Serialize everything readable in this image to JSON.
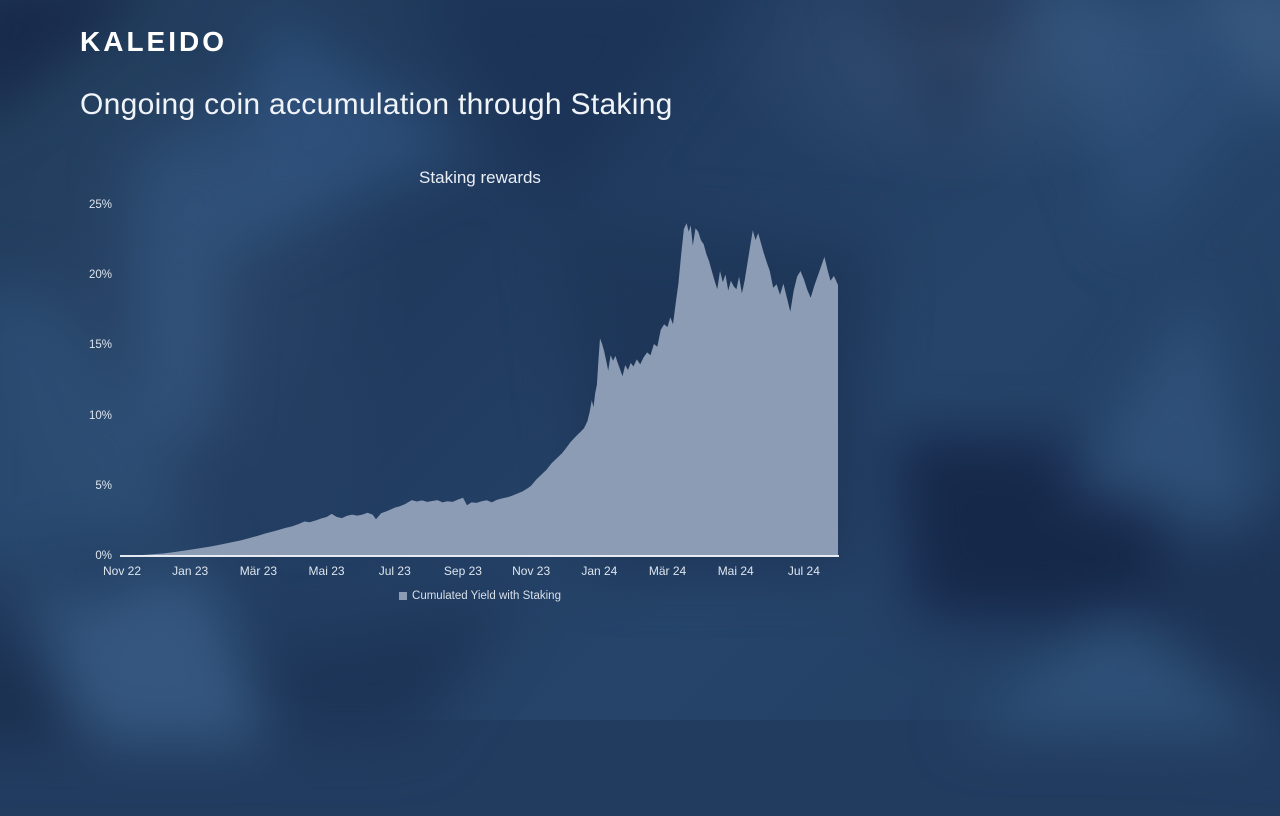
{
  "slide": {
    "logo": "KALEIDO",
    "title": "Ongoing coin accumulation through Staking"
  },
  "chart": {
    "title": "Staking rewards",
    "legend_label": "Cumulated Yield with Staking",
    "colors": {
      "area": "#8c9cb4",
      "axis": "#edf2f8",
      "text": "#dde5ee",
      "background": "#223c60"
    }
  },
  "chart_data": {
    "type": "area",
    "title": "Staking rewards",
    "xlabel": "",
    "ylabel": "",
    "x_unit": "months since Nov 2022",
    "x_ticks": [
      "Nov 22",
      "Jan 23",
      "Mär 23",
      "Mai 23",
      "Jul 23",
      "Sep 23",
      "Nov 23",
      "Jan 24",
      "Mär 24",
      "Mai 24",
      "Jul 24"
    ],
    "x_tick_positions_months": [
      0,
      2,
      4,
      6,
      8,
      10,
      12,
      14,
      16,
      18,
      20
    ],
    "y_ticks": [
      "0%",
      "5%",
      "10%",
      "15%",
      "20%",
      "25%"
    ],
    "y_tick_values": [
      0,
      5,
      10,
      15,
      20,
      25
    ],
    "ylim": [
      0,
      25
    ],
    "xlim_months": [
      0,
      21
    ],
    "grid": false,
    "legend_position": "bottom",
    "series": [
      {
        "name": "Cumulated Yield with Staking",
        "color": "#8c9cb4",
        "points_month_pct": [
          [
            0,
            0
          ],
          [
            0.3,
            0.03
          ],
          [
            0.6,
            0.07
          ],
          [
            0.9,
            0.12
          ],
          [
            1.2,
            0.18
          ],
          [
            1.5,
            0.27
          ],
          [
            1.8,
            0.37
          ],
          [
            2,
            0.45
          ],
          [
            2.3,
            0.56
          ],
          [
            2.6,
            0.68
          ],
          [
            2.9,
            0.82
          ],
          [
            3.2,
            0.97
          ],
          [
            3.5,
            1.12
          ],
          [
            3.8,
            1.32
          ],
          [
            4,
            1.45
          ],
          [
            4.2,
            1.6
          ],
          [
            4.4,
            1.73
          ],
          [
            4.6,
            1.86
          ],
          [
            4.8,
            2.0
          ],
          [
            5,
            2.12
          ],
          [
            5.2,
            2.3
          ],
          [
            5.35,
            2.46
          ],
          [
            5.5,
            2.4
          ],
          [
            5.7,
            2.55
          ],
          [
            5.85,
            2.68
          ],
          [
            6,
            2.78
          ],
          [
            6.15,
            3.0
          ],
          [
            6.3,
            2.78
          ],
          [
            6.45,
            2.7
          ],
          [
            6.6,
            2.86
          ],
          [
            6.75,
            2.95
          ],
          [
            6.9,
            2.88
          ],
          [
            7.05,
            2.95
          ],
          [
            7.2,
            3.08
          ],
          [
            7.35,
            2.95
          ],
          [
            7.45,
            2.62
          ],
          [
            7.6,
            3.05
          ],
          [
            7.8,
            3.22
          ],
          [
            8,
            3.45
          ],
          [
            8.15,
            3.55
          ],
          [
            8.3,
            3.7
          ],
          [
            8.5,
            3.98
          ],
          [
            8.65,
            3.88
          ],
          [
            8.8,
            3.96
          ],
          [
            8.95,
            3.85
          ],
          [
            9.1,
            3.92
          ],
          [
            9.25,
            3.98
          ],
          [
            9.4,
            3.82
          ],
          [
            9.55,
            3.9
          ],
          [
            9.7,
            3.85
          ],
          [
            9.85,
            4.02
          ],
          [
            10,
            4.15
          ],
          [
            10.12,
            3.62
          ],
          [
            10.25,
            3.82
          ],
          [
            10.4,
            3.78
          ],
          [
            10.55,
            3.9
          ],
          [
            10.7,
            3.97
          ],
          [
            10.85,
            3.82
          ],
          [
            11,
            4.0
          ],
          [
            11.15,
            4.1
          ],
          [
            11.3,
            4.18
          ],
          [
            11.45,
            4.3
          ],
          [
            11.6,
            4.45
          ],
          [
            11.75,
            4.6
          ],
          [
            11.9,
            4.82
          ],
          [
            12,
            5.0
          ],
          [
            12.15,
            5.45
          ],
          [
            12.3,
            5.8
          ],
          [
            12.45,
            6.15
          ],
          [
            12.6,
            6.6
          ],
          [
            12.75,
            6.95
          ],
          [
            12.9,
            7.3
          ],
          [
            13,
            7.6
          ],
          [
            13.15,
            8.1
          ],
          [
            13.3,
            8.5
          ],
          [
            13.45,
            8.85
          ],
          [
            13.55,
            9.1
          ],
          [
            13.65,
            9.6
          ],
          [
            13.72,
            10.3
          ],
          [
            13.78,
            11.1
          ],
          [
            13.83,
            10.6
          ],
          [
            13.88,
            11.6
          ],
          [
            13.93,
            12.2
          ],
          [
            13.97,
            13.8
          ],
          [
            14.02,
            15.5
          ],
          [
            14.08,
            15.1
          ],
          [
            14.14,
            14.6
          ],
          [
            14.2,
            13.9
          ],
          [
            14.26,
            13.2
          ],
          [
            14.33,
            14.3
          ],
          [
            14.4,
            13.9
          ],
          [
            14.47,
            14.25
          ],
          [
            14.54,
            13.75
          ],
          [
            14.6,
            13.35
          ],
          [
            14.68,
            12.8
          ],
          [
            14.76,
            13.6
          ],
          [
            14.84,
            13.25
          ],
          [
            14.92,
            13.75
          ],
          [
            15,
            13.5
          ],
          [
            15.1,
            14.0
          ],
          [
            15.2,
            13.65
          ],
          [
            15.3,
            14.15
          ],
          [
            15.4,
            14.5
          ],
          [
            15.5,
            14.3
          ],
          [
            15.6,
            15.1
          ],
          [
            15.7,
            14.9
          ],
          [
            15.8,
            16.1
          ],
          [
            15.9,
            16.5
          ],
          [
            16,
            16.3
          ],
          [
            16.08,
            17.0
          ],
          [
            16.16,
            16.5
          ],
          [
            16.24,
            18.0
          ],
          [
            16.32,
            19.4
          ],
          [
            16.4,
            21.5
          ],
          [
            16.48,
            23.3
          ],
          [
            16.56,
            23.7
          ],
          [
            16.62,
            23.1
          ],
          [
            16.68,
            23.55
          ],
          [
            16.74,
            22.1
          ],
          [
            16.82,
            23.35
          ],
          [
            16.9,
            23.1
          ],
          [
            16.98,
            22.5
          ],
          [
            17.06,
            22.2
          ],
          [
            17.14,
            21.5
          ],
          [
            17.22,
            21.0
          ],
          [
            17.3,
            20.3
          ],
          [
            17.38,
            19.6
          ],
          [
            17.46,
            19.0
          ],
          [
            17.54,
            20.3
          ],
          [
            17.62,
            19.5
          ],
          [
            17.7,
            20.05
          ],
          [
            17.78,
            18.9
          ],
          [
            17.86,
            19.6
          ],
          [
            17.94,
            19.2
          ],
          [
            18.02,
            19.0
          ],
          [
            18.1,
            19.9
          ],
          [
            18.18,
            18.7
          ],
          [
            18.26,
            19.6
          ],
          [
            18.34,
            20.8
          ],
          [
            18.42,
            22.0
          ],
          [
            18.5,
            23.2
          ],
          [
            18.58,
            22.5
          ],
          [
            18.66,
            23.0
          ],
          [
            18.74,
            22.3
          ],
          [
            18.82,
            21.6
          ],
          [
            18.9,
            21.0
          ],
          [
            19,
            20.3
          ],
          [
            19.1,
            19.1
          ],
          [
            19.2,
            19.35
          ],
          [
            19.3,
            18.6
          ],
          [
            19.4,
            19.4
          ],
          [
            19.5,
            18.4
          ],
          [
            19.6,
            17.4
          ],
          [
            19.7,
            18.9
          ],
          [
            19.8,
            19.9
          ],
          [
            19.9,
            20.3
          ],
          [
            20,
            19.7
          ],
          [
            20.1,
            18.95
          ],
          [
            20.2,
            18.4
          ],
          [
            20.3,
            19.2
          ],
          [
            20.4,
            19.9
          ],
          [
            20.5,
            20.6
          ],
          [
            20.6,
            21.3
          ],
          [
            20.7,
            20.3
          ],
          [
            20.78,
            19.6
          ],
          [
            20.88,
            19.95
          ],
          [
            21,
            19.3
          ]
        ]
      }
    ]
  }
}
